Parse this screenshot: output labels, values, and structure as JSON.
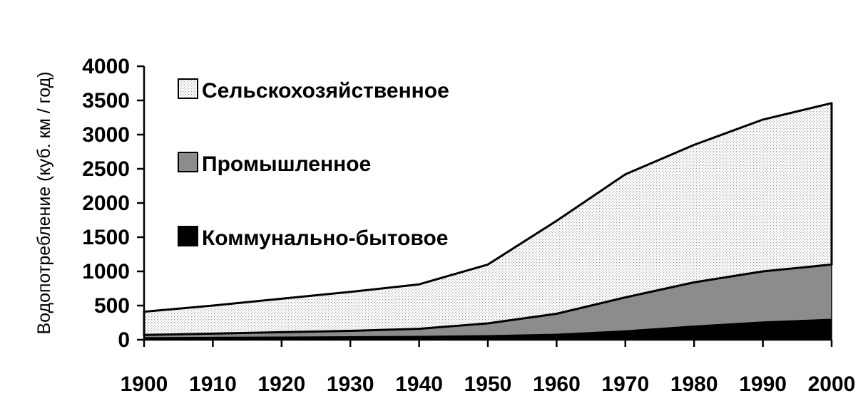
{
  "chart_data": {
    "type": "area",
    "stacked": true,
    "title": "",
    "xlabel": "",
    "ylabel": "Водопотребление (куб. км / год)",
    "x": [
      1900,
      1910,
      1920,
      1930,
      1940,
      1950,
      1960,
      1970,
      1980,
      1990,
      2000
    ],
    "xticks": [
      "1900",
      "1910",
      "1920",
      "1930",
      "1940",
      "1950",
      "1960",
      "1970",
      "1980",
      "1990",
      "2000"
    ],
    "yticks": [
      "0",
      "500",
      "1000",
      "1500",
      "2000",
      "2500",
      "3000",
      "3500",
      "4000"
    ],
    "ylim": [
      0,
      4000
    ],
    "xlim": [
      1900,
      2000
    ],
    "legend_position": "top-left",
    "series": [
      {
        "name": "Коммунально-бытовое",
        "values": [
          30,
          35,
          40,
          45,
          50,
          60,
          80,
          130,
          200,
          260,
          300
        ],
        "color": "#000000",
        "pattern": "solid"
      },
      {
        "name": "Промышленное",
        "values": [
          40,
          55,
          70,
          85,
          110,
          180,
          300,
          490,
          640,
          740,
          800
        ],
        "color": "#8c8c8c",
        "pattern": "solid"
      },
      {
        "name": "Сельскохозяйственное",
        "values": [
          340,
          410,
          490,
          570,
          650,
          860,
          1360,
          1800,
          2010,
          2220,
          2360
        ],
        "color": "#f2f2f2",
        "pattern": "dotted"
      }
    ],
    "legend_order": [
      "Сельскохозяйственное",
      "Промышленное",
      "Коммунально-бытовое"
    ],
    "grid": false
  }
}
